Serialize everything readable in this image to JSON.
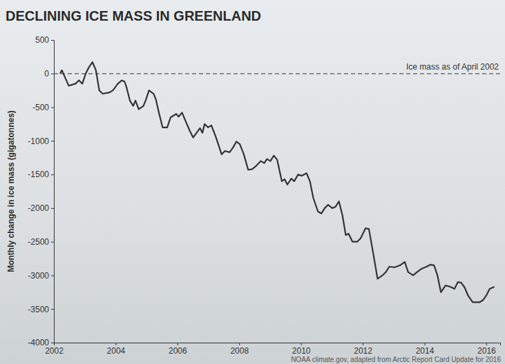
{
  "chart_data": {
    "type": "line",
    "title": "DECLINING ICE MASS IN GREENLAND",
    "y_label": "Monthly change in ice mass (gigatonnes)",
    "source": "NOAA climate.gov, adapted from Arctic Report Card Update for 2016",
    "annotations": [
      {
        "text": "Ice mass as of April 2002",
        "y": 0
      }
    ],
    "color": "#333333",
    "line_style": "solid",
    "grid": false,
    "xlim": [
      2002,
      2016.45
    ],
    "xticks": [
      2002,
      2004,
      2006,
      2008,
      2010,
      2012,
      2014,
      2016
    ],
    "ylim": [
      -4000,
      500
    ],
    "yticks": [
      -4000,
      -3500,
      -3000,
      -2500,
      -2000,
      -1500,
      -1000,
      -500,
      0,
      500
    ],
    "x": [
      2002.2,
      2002.26,
      2002.48,
      2002.7,
      2002.81,
      2002.92,
      2003.03,
      2003.14,
      2003.25,
      2003.36,
      2003.47,
      2003.58,
      2003.8,
      2003.91,
      2004.07,
      2004.2,
      2004.29,
      2004.35,
      2004.46,
      2004.57,
      2004.64,
      2004.75,
      2004.9,
      2004.97,
      2005.08,
      2005.23,
      2005.3,
      2005.41,
      2005.52,
      2005.67,
      2005.78,
      2005.96,
      2006.04,
      2006.15,
      2006.26,
      2006.4,
      2006.51,
      2006.62,
      2006.73,
      2006.81,
      2006.88,
      2006.99,
      2007.1,
      2007.25,
      2007.43,
      2007.54,
      2007.69,
      2007.8,
      2007.91,
      2008.02,
      2008.15,
      2008.29,
      2008.42,
      2008.53,
      2008.7,
      2008.81,
      2008.9,
      2009.01,
      2009.12,
      2009.23,
      2009.38,
      2009.47,
      2009.56,
      2009.69,
      2009.78,
      2009.91,
      2010.02,
      2010.18,
      2010.29,
      2010.4,
      2010.55,
      2010.66,
      2010.77,
      2010.88,
      2011.01,
      2011.12,
      2011.23,
      2011.34,
      2011.45,
      2011.54,
      2011.67,
      2011.82,
      2011.93,
      2012.09,
      2012.2,
      2012.35,
      2012.48,
      2012.64,
      2012.75,
      2012.86,
      2013.03,
      2013.21,
      2013.36,
      2013.47,
      2013.63,
      2013.76,
      2013.91,
      2014.07,
      2014.2,
      2014.31,
      2014.42,
      2014.53,
      2014.68,
      2014.84,
      2014.97,
      2015.08,
      2015.19,
      2015.3,
      2015.41,
      2015.56,
      2015.78,
      2015.89,
      2016.0,
      2016.11,
      2016.26
    ],
    "values": [
      0,
      50,
      -180,
      -150,
      -100,
      -150,
      0,
      100,
      170,
      50,
      -250,
      -300,
      -280,
      -250,
      -150,
      -100,
      -120,
      -200,
      -400,
      -480,
      -400,
      -530,
      -480,
      -400,
      -250,
      -300,
      -380,
      -600,
      -800,
      -800,
      -650,
      -600,
      -640,
      -580,
      -700,
      -850,
      -950,
      -880,
      -810,
      -880,
      -750,
      -800,
      -770,
      -950,
      -1200,
      -1150,
      -1170,
      -1100,
      -1010,
      -1050,
      -1200,
      -1430,
      -1420,
      -1380,
      -1300,
      -1330,
      -1270,
      -1300,
      -1220,
      -1280,
      -1600,
      -1570,
      -1650,
      -1560,
      -1600,
      -1500,
      -1520,
      -1480,
      -1600,
      -1850,
      -2050,
      -2080,
      -2000,
      -1950,
      -2000,
      -1980,
      -1900,
      -2100,
      -2400,
      -2380,
      -2500,
      -2500,
      -2450,
      -2300,
      -2310,
      -2700,
      -3050,
      -3000,
      -2950,
      -2870,
      -2880,
      -2850,
      -2800,
      -2950,
      -3000,
      -2950,
      -2900,
      -2870,
      -2840,
      -2850,
      -3000,
      -3250,
      -3150,
      -3170,
      -3200,
      -3100,
      -3110,
      -3180,
      -3300,
      -3400,
      -3400,
      -3370,
      -3300,
      -3200,
      -3170
    ]
  }
}
